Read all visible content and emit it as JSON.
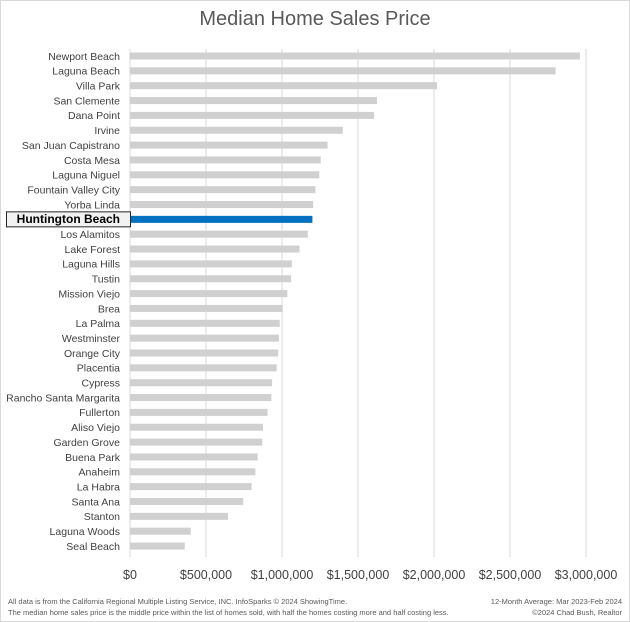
{
  "chart_data": {
    "type": "bar",
    "orientation": "horizontal",
    "title": "Median Home Sales Price",
    "categories": [
      "Newport Beach",
      "Laguna Beach",
      "Villa Park",
      "San Clemente",
      "Dana Point",
      "Irvine",
      "San Juan Capistrano",
      "Costa Mesa",
      "Laguna Niguel",
      "Fountain Valley City",
      "Yorba Linda",
      "Huntington Beach",
      "Los Alamitos",
      "Lake Forest",
      "Laguna Hills",
      "Tustin",
      "Mission Viejo",
      "Brea",
      "La Palma",
      "Westminster",
      "Orange City",
      "Placentia",
      "Cypress",
      "Rancho Santa Margarita",
      "Fullerton",
      "Aliso Viejo",
      "Garden Grove",
      "Buena Park",
      "Anaheim",
      "La Habra",
      "Santa Ana",
      "Stanton",
      "Laguna Woods",
      "Seal Beach"
    ],
    "values": [
      2960000,
      2800000,
      2020000,
      1625000,
      1605000,
      1400000,
      1300000,
      1255000,
      1245000,
      1220000,
      1205000,
      1200000,
      1170000,
      1115000,
      1065000,
      1060000,
      1035000,
      1005000,
      985000,
      980000,
      975000,
      965000,
      935000,
      930000,
      905000,
      875000,
      870000,
      840000,
      825000,
      800000,
      745000,
      645000,
      400000,
      360000
    ],
    "highlight": "Huntington Beach",
    "xlabel": "",
    "ylabel": "",
    "xlim": [
      0,
      3000000
    ],
    "x_ticks": [
      "$0",
      "$500,000",
      "$1,000,000",
      "$1,500,000",
      "$2,000,000",
      "$2,500,000",
      "$3,000,000"
    ],
    "grid": true,
    "colors": {
      "bar": "#d0d0d0",
      "highlight": "#0070c0",
      "grid": "#d9d9d9",
      "text": "#404040"
    }
  },
  "footer": {
    "source": "All data is from the California Regional Multiple Listing Service, INC. InfoSparks © 2024 ShowingTime.",
    "note": "The median home sales price is the middle price within the list of homes sold, with half the homes costing more and half costing less.",
    "period": "12-Month Average: Mar 2023-Feb 2024",
    "copyright": "©2024 Chad Bush, Realtor"
  }
}
